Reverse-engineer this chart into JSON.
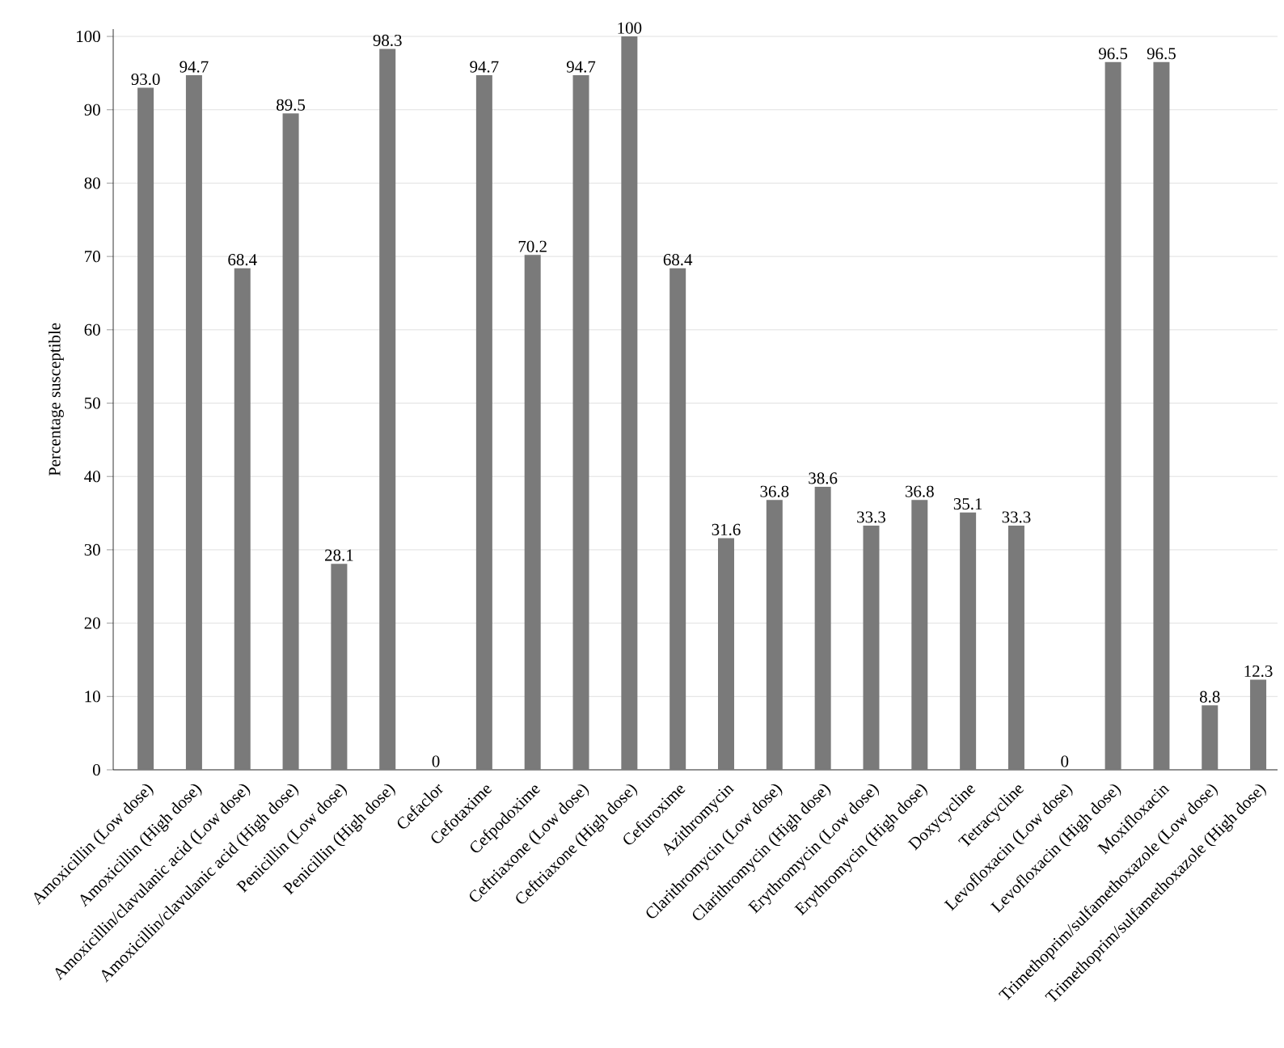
{
  "chart_data": {
    "type": "bar",
    "ylabel": "Percentage susceptible",
    "categories": [
      "Amoxicillin (Low dose)",
      "Amoxicillin (High dose)",
      "Amoxicillin/clavulanic acid (Low dose)",
      "Amoxicillin/clavulanic acid (High dose)",
      "Penicillin (Low dose)",
      "Penicillin (High dose)",
      "Cefaclor",
      "Cefotaxime",
      "Cefpodoxime",
      "Ceftriaxone (Low dose)",
      "Ceftriaxone (High dose)",
      "Cefuroxime",
      "Azithromycin",
      "Clarithromycin (Low dose)",
      "Clarithromycin (High dose)",
      "Erythromycin (Low dose)",
      "Erythromycin (High dose)",
      "Doxycycline",
      "Tetracycline",
      "Levofloxacin (Low dose)",
      "Levofloxacin (High dose)",
      "Moxifloxacin",
      "Trimethoprim/sulfamethoxazole (Low dose)",
      "Trimethoprim/sulfamethoxazole (High dose)"
    ],
    "values": [
      93.0,
      94.7,
      68.4,
      89.5,
      28.1,
      98.3,
      0,
      94.7,
      70.2,
      94.7,
      100,
      68.4,
      31.6,
      36.8,
      38.6,
      33.3,
      36.8,
      35.1,
      33.3,
      0,
      96.5,
      96.5,
      8.8,
      12.3
    ],
    "value_labels": [
      "93.0",
      "94.7",
      "68.4",
      "89.5",
      "28.1",
      "98.3",
      "0",
      "94.7",
      "70.2",
      "94.7",
      "100",
      "68.4",
      "31.6",
      "36.8",
      "38.6",
      "33.3",
      "36.8",
      "35.1",
      "33.3",
      "0",
      "96.5",
      "96.5",
      "8.8",
      "12.3"
    ],
    "color": "#7a7a7a",
    "ylim": [
      0,
      101
    ],
    "yticks": [
      0,
      10,
      20,
      30,
      40,
      50,
      60,
      70,
      80,
      90,
      100
    ],
    "grid": "y"
  }
}
